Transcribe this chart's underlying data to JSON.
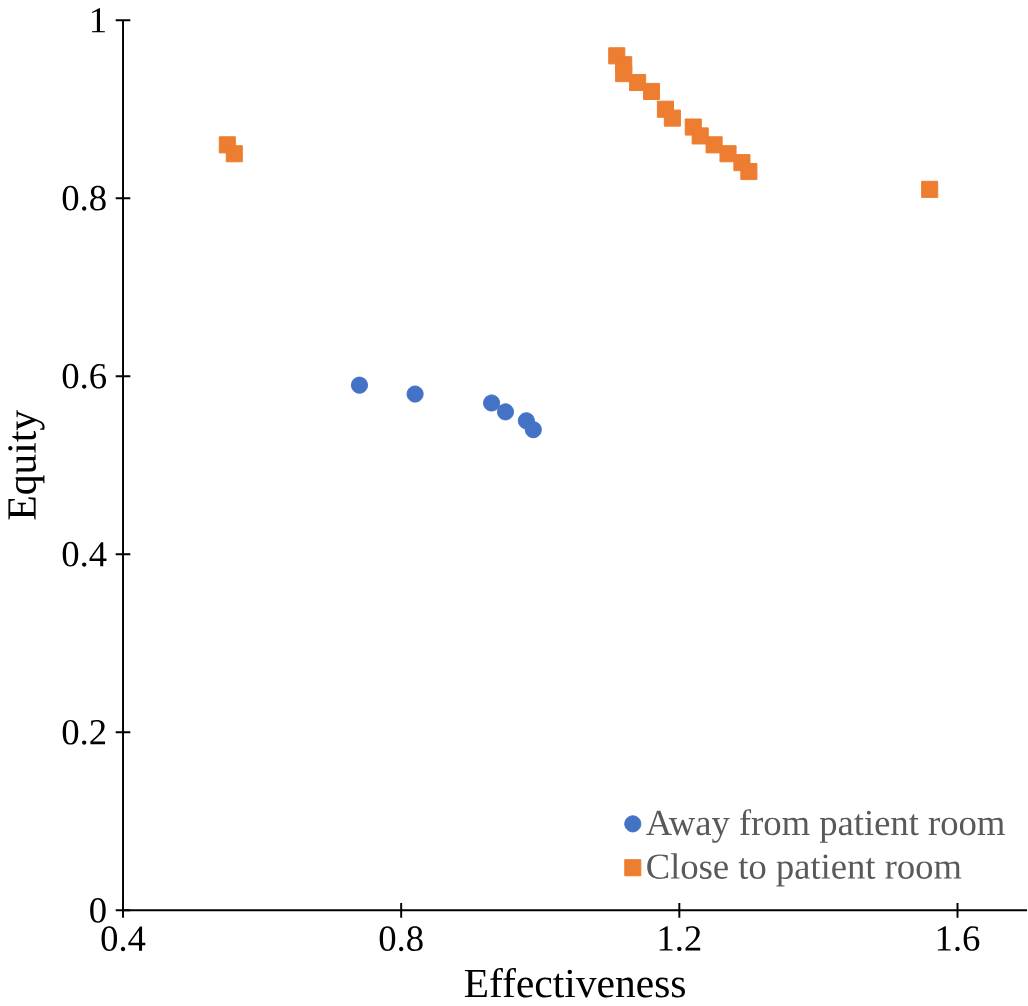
{
  "chart_data": {
    "type": "scatter",
    "xlabel": "Effectiveness",
    "ylabel": "Equity",
    "xlim": [
      0.4,
      1.7
    ],
    "ylim": [
      0,
      1
    ],
    "xticks": [
      0.4,
      0.8,
      1.2,
      1.6
    ],
    "yticks": [
      0,
      0.2,
      0.4,
      0.6,
      0.8,
      1
    ],
    "grid": false,
    "legend": "bottom right",
    "series": [
      {
        "name": "Away from patient room",
        "color": "#4472c4",
        "marker": "circle",
        "x": [
          0.74,
          0.82,
          0.93,
          0.95,
          0.98,
          0.99
        ],
        "values": [
          0.59,
          0.58,
          0.57,
          0.56,
          0.55,
          0.54
        ]
      },
      {
        "name": "Close to patient room",
        "color": "#ed7d31",
        "marker": "square",
        "x": [
          0.55,
          0.56,
          1.11,
          1.12,
          1.12,
          1.14,
          1.16,
          1.18,
          1.19,
          1.22,
          1.23,
          1.25,
          1.27,
          1.29,
          1.3,
          1.56
        ],
        "values": [
          0.86,
          0.85,
          0.96,
          0.95,
          0.94,
          0.93,
          0.92,
          0.9,
          0.89,
          0.88,
          0.87,
          0.86,
          0.85,
          0.84,
          0.83,
          0.81
        ]
      }
    ]
  }
}
